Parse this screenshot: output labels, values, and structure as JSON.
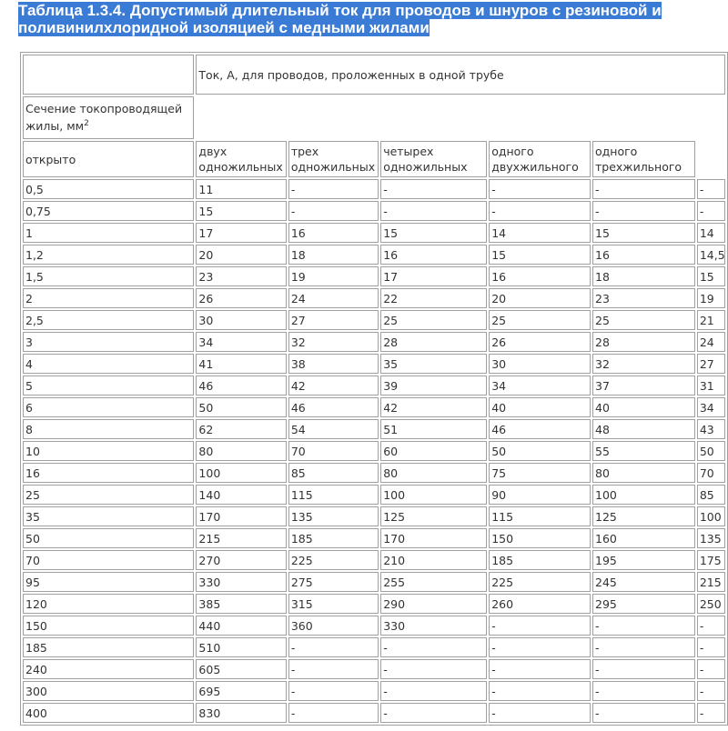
{
  "header": {
    "title_lines": [
      "Таблица 1.3.4. Допустимый длительный ток для проводов и шнуров с резиновой и",
      "поливинилхлоридной изоляцией с медными жилами"
    ]
  },
  "table": {
    "group_header": "Ток, А, для проводов, проложенных в одной трубе",
    "section_label": "Сечение токопроводящей жилы, мм",
    "section_label_sup": "2",
    "columns": [
      "открыто",
      "двух одножильных",
      "трех одножильных",
      "четырех одножильных",
      "одного двухжильного",
      "одного трехжильного"
    ],
    "rows": [
      [
        "0,5",
        "11",
        "-",
        "-",
        "-",
        "-",
        "-"
      ],
      [
        "0,75",
        "15",
        "-",
        "-",
        "-",
        "-",
        "-"
      ],
      [
        "1",
        "17",
        "16",
        "15",
        "14",
        "15",
        "14"
      ],
      [
        "1,2",
        "20",
        "18",
        "16",
        "15",
        "16",
        "14,5"
      ],
      [
        "1,5",
        "23",
        "19",
        "17",
        "16",
        "18",
        "15"
      ],
      [
        "2",
        "26",
        "24",
        "22",
        "20",
        "23",
        "19"
      ],
      [
        "2,5",
        "30",
        "27",
        "25",
        "25",
        "25",
        "21"
      ],
      [
        "3",
        "34",
        "32",
        "28",
        "26",
        "28",
        "24"
      ],
      [
        "4",
        "41",
        "38",
        "35",
        "30",
        "32",
        "27"
      ],
      [
        "5",
        "46",
        "42",
        "39",
        "34",
        "37",
        "31"
      ],
      [
        "6",
        "50",
        "46",
        "42",
        "40",
        "40",
        "34"
      ],
      [
        "8",
        "62",
        "54",
        "51",
        "46",
        "48",
        "43"
      ],
      [
        "10",
        "80",
        "70",
        "60",
        "50",
        "55",
        "50"
      ],
      [
        "16",
        "100",
        "85",
        "80",
        "75",
        "80",
        "70"
      ],
      [
        "25",
        "140",
        "115",
        "100",
        "90",
        "100",
        "85"
      ],
      [
        "35",
        "170",
        "135",
        "125",
        "115",
        "125",
        "100"
      ],
      [
        "50",
        "215",
        "185",
        "170",
        "150",
        "160",
        "135"
      ],
      [
        "70",
        "270",
        "225",
        "210",
        "185",
        "195",
        "175"
      ],
      [
        "95",
        "330",
        "275",
        "255",
        "225",
        "245",
        "215"
      ],
      [
        "120",
        "385",
        "315",
        "290",
        "260",
        "295",
        "250"
      ],
      [
        "150",
        "440",
        "360",
        "330",
        "-",
        "-",
        "-"
      ],
      [
        "185",
        "510",
        "-",
        "-",
        "-",
        "-",
        "-"
      ],
      [
        "240",
        "605",
        "-",
        "-",
        "-",
        "-",
        "-"
      ],
      [
        "300",
        "695",
        "-",
        "-",
        "-",
        "-",
        "-"
      ],
      [
        "400",
        "830",
        "-",
        "-",
        "-",
        "-",
        "-"
      ]
    ]
  }
}
